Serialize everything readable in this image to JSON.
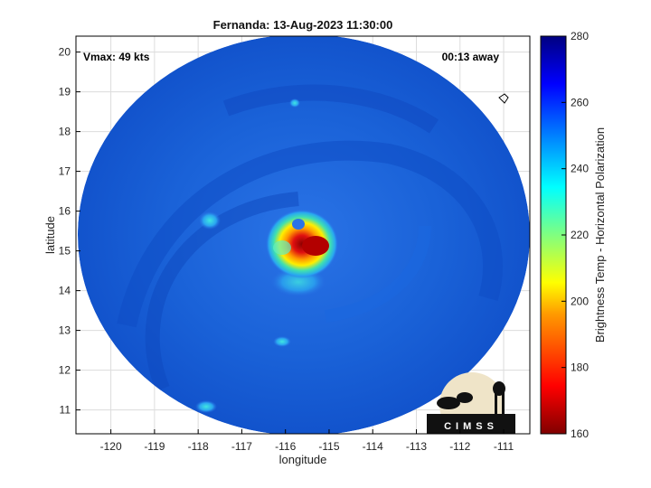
{
  "figure": {
    "title": "Fernanda: 13-Aug-2023 11:30:00",
    "xlabel": "longitude",
    "ylabel": "latitude",
    "vmax_text": "Vmax: 49 kts",
    "time_offset_text": "00:13 away",
    "logo_text": "CIMSS"
  },
  "axes": {
    "x_range": [
      -120.8,
      -110.4
    ],
    "y_range": [
      10.4,
      20.4
    ],
    "x_ticks": [
      "-120",
      "-119",
      "-118",
      "-117",
      "-116",
      "-115",
      "-114",
      "-113",
      "-112",
      "-111"
    ],
    "y_ticks": [
      "20",
      "19",
      "18",
      "17",
      "16",
      "15",
      "14",
      "13",
      "12",
      "11"
    ],
    "grid": true
  },
  "colorbar": {
    "label": "Brightness Temp - Horizontal Polarization",
    "range": [
      160,
      280
    ],
    "ticks": [
      "280",
      "260",
      "240",
      "220",
      "200",
      "180",
      "160"
    ],
    "colormap": "jet"
  },
  "storm": {
    "center_lon": -115.3,
    "center_lat": 15.1,
    "swath_center_lon": -115.6,
    "swath_center_lat": 15.4
  },
  "colors": {
    "background_blue": "#1560d6",
    "cold_core": "#a00000",
    "frame": "#000000"
  }
}
